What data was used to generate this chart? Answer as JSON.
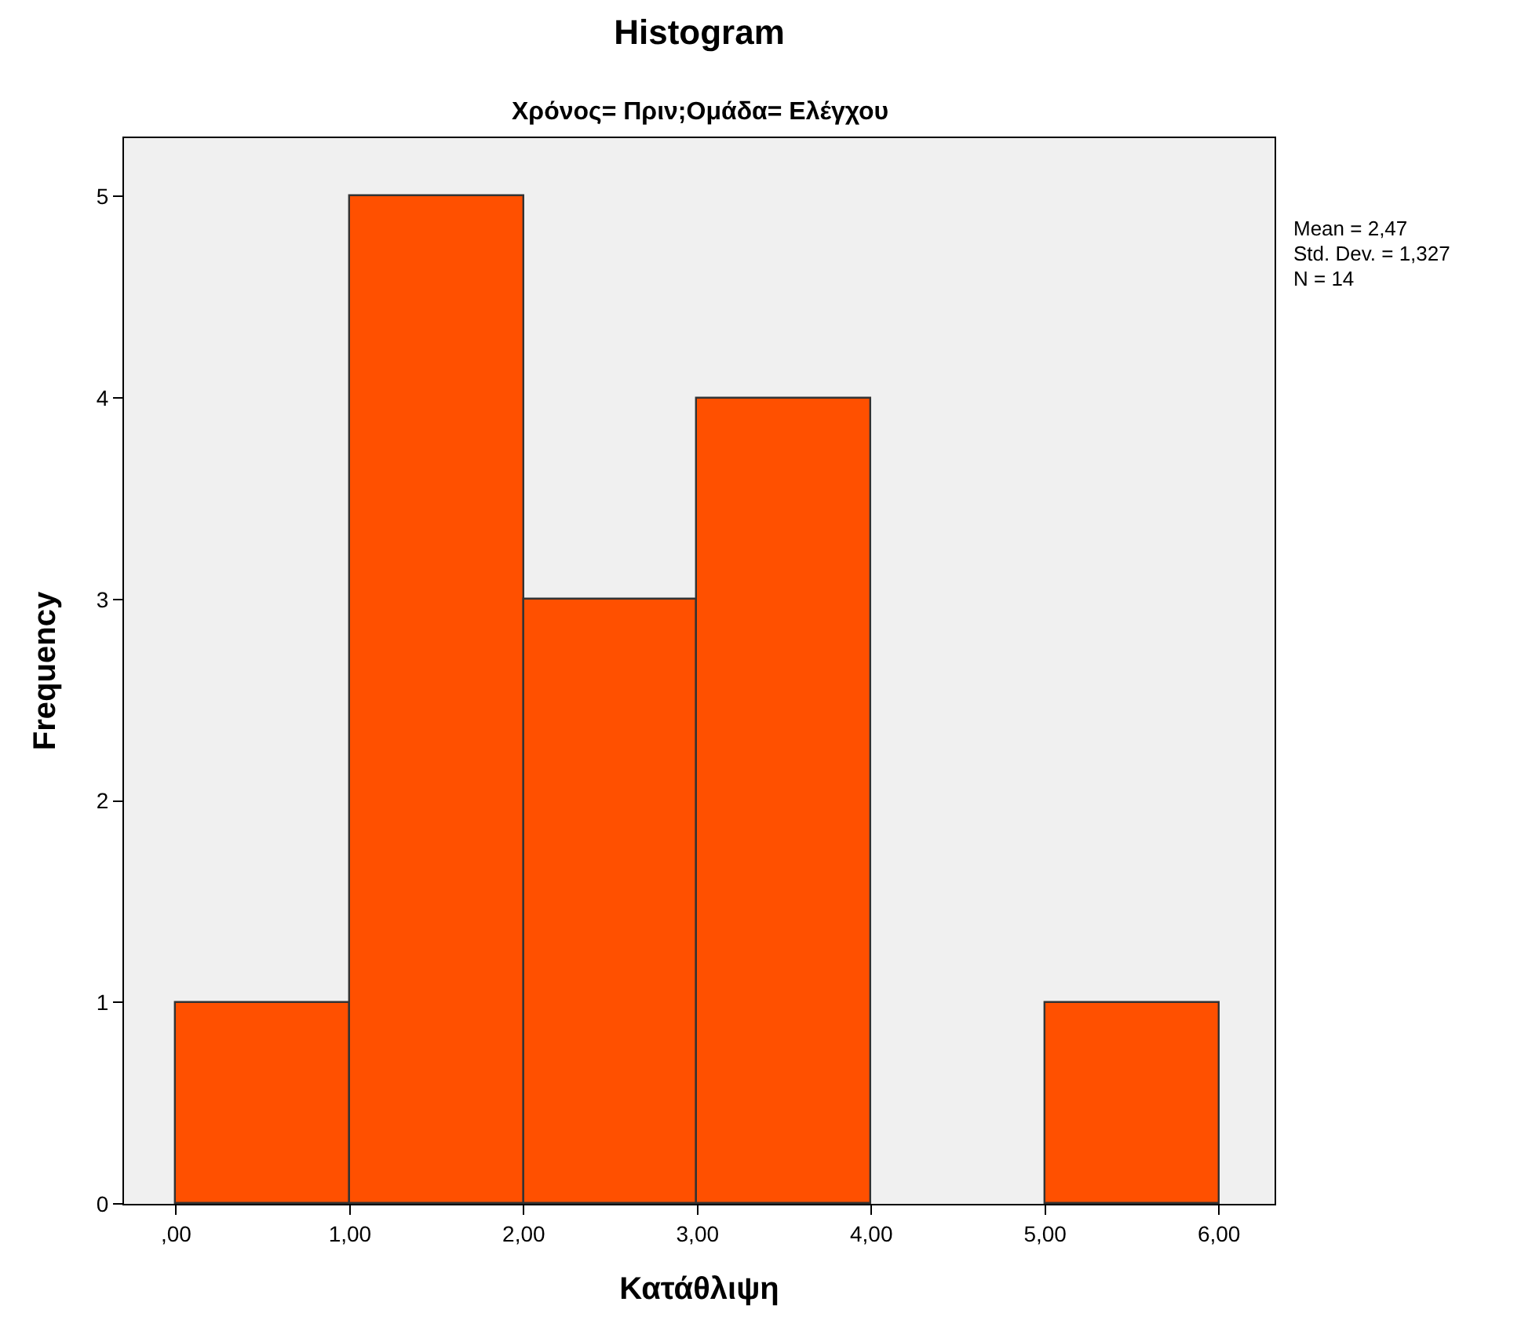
{
  "chart_data": {
    "type": "histogram",
    "title": "Histogram",
    "subtitle": "Χρόνος= Πριν;Ομάδα= Ελέγχου",
    "xlabel": "Κατάθλιψη",
    "ylabel": "Frequency",
    "bins": [
      0,
      1,
      2,
      3,
      4,
      5,
      6
    ],
    "values": [
      1,
      5,
      3,
      4,
      0,
      1
    ],
    "color": "#ff5000",
    "xlim": [
      -0.3,
      6.32
    ],
    "ylim": [
      0,
      5.29
    ],
    "xticks": [
      {
        "value": 0,
        "label": ",00"
      },
      {
        "value": 1,
        "label": "1,00"
      },
      {
        "value": 2,
        "label": "2,00"
      },
      {
        "value": 3,
        "label": "3,00"
      },
      {
        "value": 4,
        "label": "4,00"
      },
      {
        "value": 5,
        "label": "5,00"
      },
      {
        "value": 6,
        "label": "6,00"
      }
    ],
    "yticks": [
      0,
      1,
      2,
      3,
      4,
      5
    ],
    "annotations": [
      "Mean = 2,47",
      "Std. Dev. = 1,327",
      "N = 14"
    ],
    "grid": false
  }
}
